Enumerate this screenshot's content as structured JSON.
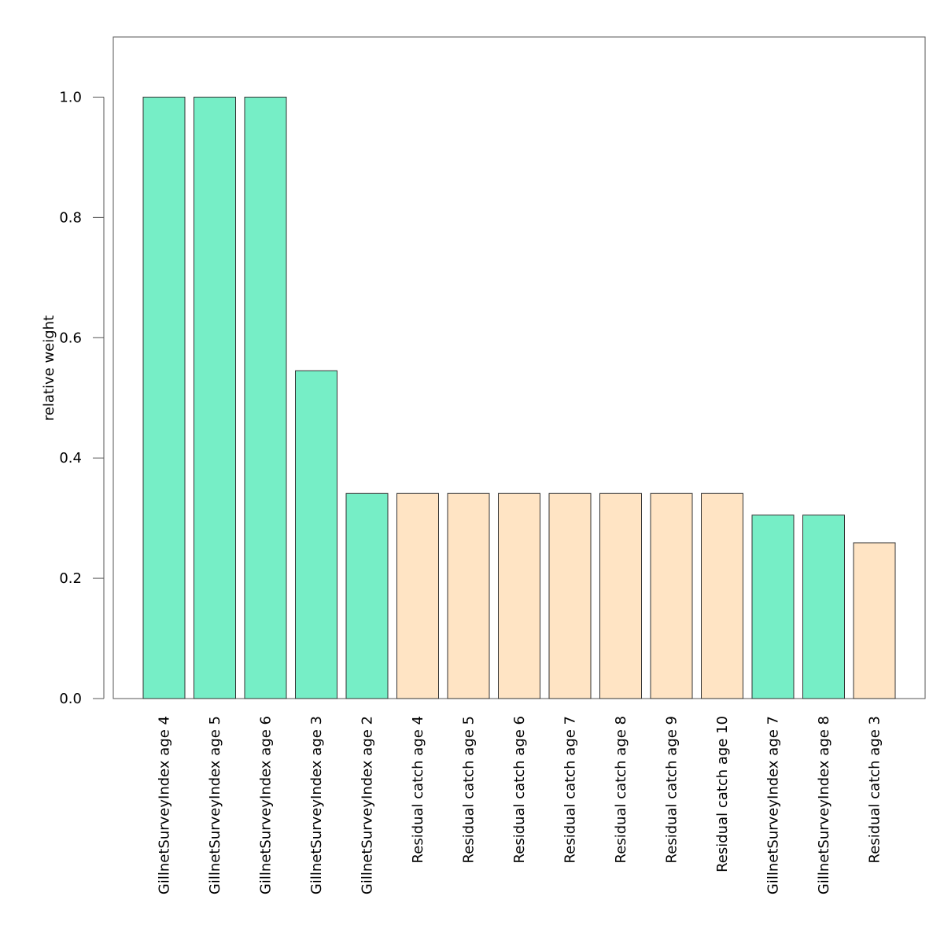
{
  "chart_data": {
    "type": "bar",
    "title": "",
    "xlabel": "",
    "ylabel": "relative weight",
    "ylim": [
      0,
      1.1
    ],
    "yticks": [
      "0.0",
      "0.2",
      "0.4",
      "0.6",
      "0.8",
      "1.0"
    ],
    "ytick_values": [
      0,
      0.2,
      0.4,
      0.6,
      0.8,
      1.0
    ],
    "grid": false,
    "categories": [
      "GillnetSurveyIndex age 4",
      "GillnetSurveyIndex age 5",
      "GillnetSurveyIndex age 6",
      "GillnetSurveyIndex age 3",
      "GillnetSurveyIndex age 2",
      "Residual catch age 4",
      "Residual catch age 5",
      "Residual catch age 6",
      "Residual catch age 7",
      "Residual catch age 8",
      "Residual catch age 9",
      "Residual catch age 10",
      "GillnetSurveyIndex age 7",
      "GillnetSurveyIndex age 8",
      "Residual catch age 3"
    ],
    "values": [
      1.0,
      1.0,
      1.0,
      0.545,
      0.341,
      0.341,
      0.341,
      0.341,
      0.341,
      0.341,
      0.341,
      0.341,
      0.305,
      0.305,
      0.259
    ],
    "groups": [
      "survey",
      "survey",
      "survey",
      "survey",
      "survey",
      "catch",
      "catch",
      "catch",
      "catch",
      "catch",
      "catch",
      "catch",
      "survey",
      "survey",
      "catch"
    ],
    "colors": {
      "survey": "#76eec6",
      "catch": "#ffe4c4",
      "bar_edge": "#333333",
      "axis": "#555555"
    }
  }
}
